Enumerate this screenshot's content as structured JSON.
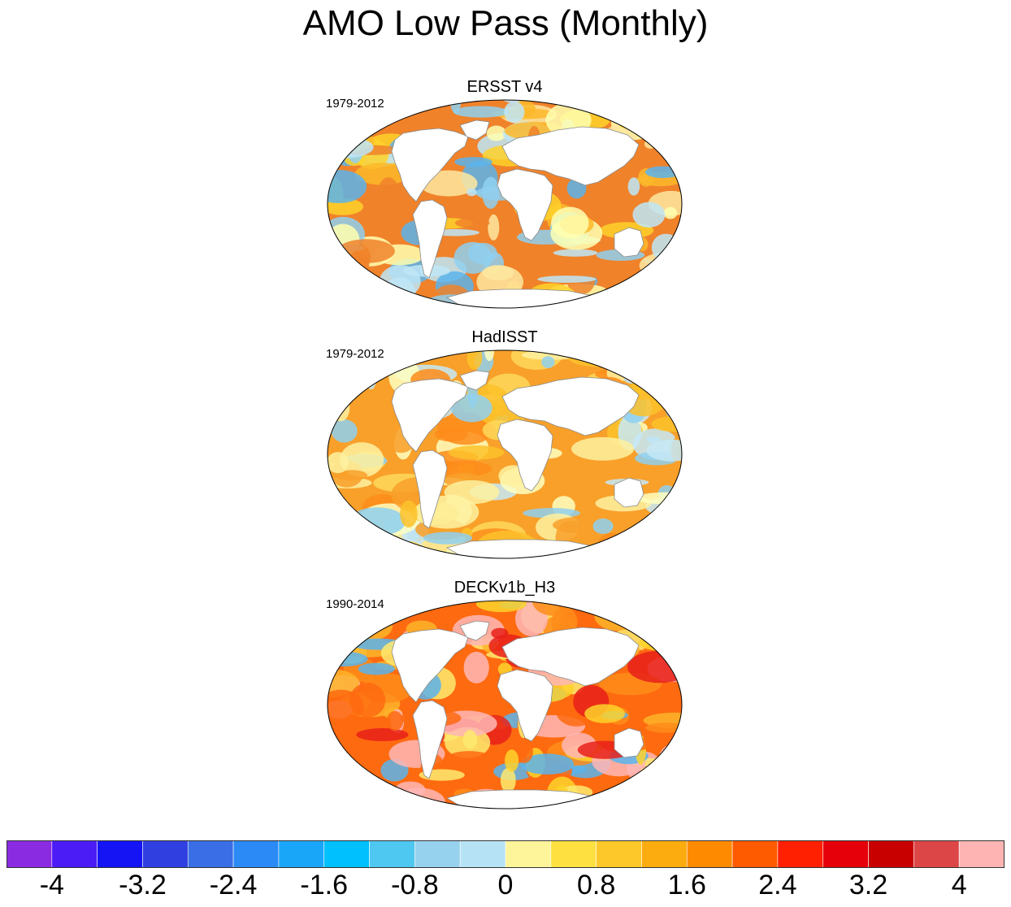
{
  "figure": {
    "title": "AMO Low Pass (Monthly)"
  },
  "panels": [
    {
      "title": "ERSST v4",
      "period": "1979-2012",
      "palette": [
        "#f0822a",
        "#fdb92a",
        "#fed22a",
        "#fee8a0",
        "#ffffb0",
        "#bee6f7",
        "#8fd0f0",
        "#5ab4ec"
      ]
    },
    {
      "title": "HadISST",
      "period": "1979-2012",
      "palette": [
        "#f8a02a",
        "#fdc22a",
        "#fed85a",
        "#fef1a0",
        "#ffffc0",
        "#c6e9f7",
        "#8fd0f0",
        "#fe8c1a"
      ]
    },
    {
      "title": "DECKv1b_H3",
      "period": "1990-2014",
      "palette": [
        "#fe6a10",
        "#fe8c1a",
        "#fdb42a",
        "#fed22a",
        "#e8201a",
        "#ffb6b6",
        "#feea70",
        "#5ab4ec"
      ]
    }
  ],
  "colorbar": {
    "colors": [
      "#8a2be2",
      "#4b1cf5",
      "#1414f5",
      "#3040e0",
      "#3a6ee6",
      "#2b8af5",
      "#1aa6f8",
      "#00c0fe",
      "#4ec8f0",
      "#96d2ee",
      "#b6e2f5",
      "#fef59a",
      "#fee040",
      "#fdc82a",
      "#fdac10",
      "#fe8a00",
      "#fe5a00",
      "#fe2000",
      "#e6000a",
      "#c80000",
      "#dc4646",
      "#ffb4b4"
    ],
    "labels": [
      "-4",
      "-3.2",
      "-2.4",
      "-1.6",
      "-0.8",
      "0",
      "0.8",
      "1.6",
      "2.4",
      "3.2",
      "4"
    ]
  }
}
